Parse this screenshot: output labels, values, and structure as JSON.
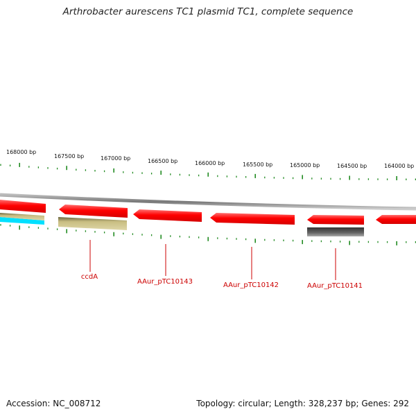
{
  "title": "Arthrobacter aurescens TC1 plasmid TC1, complete sequence",
  "footer": {
    "accession": "Accession: NC_008712",
    "summary": "Topology: circular; Length: 328,237 bp; Genes: 292"
  },
  "colors": {
    "gene": "#ff0000",
    "tick": "#228b22",
    "label": "#cc0000",
    "backbone": "#888888",
    "cds_tan": "#c8bd82",
    "cds_gray": "#555555",
    "cds_cyan": "#00e0ff"
  },
  "scale_labels": [
    "168000 bp",
    "167500 bp",
    "167000 bp",
    "166500 bp",
    "166000 bp",
    "165500 bp",
    "165000 bp",
    "164500 bp",
    "164000 bp"
  ],
  "gene_labels": [
    "ccdA",
    "AAur_pTC10143",
    "AAur_pTC10142",
    "AAur_pTC10141"
  ]
}
